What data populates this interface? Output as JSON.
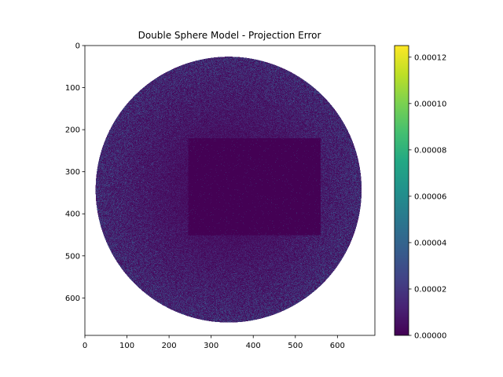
{
  "chart_data": {
    "type": "heatmap",
    "title": "Double Sphere Model - Projection Error",
    "xlabel": "",
    "ylabel": "",
    "x_ticks": [
      0,
      100,
      200,
      300,
      400,
      500,
      600
    ],
    "y_ticks": [
      0,
      100,
      200,
      300,
      400,
      500,
      600
    ],
    "xlim": [
      0,
      689
    ],
    "ylim": [
      689,
      0
    ],
    "y_axis_inverted": true,
    "image": {
      "width": 689,
      "height": 689,
      "valid_region": {
        "shape": "circle",
        "center_x": 341,
        "center_y": 342,
        "radius": 316
      },
      "outside_value": null,
      "low_error_block": {
        "x_range": [
          245,
          560
        ],
        "y_range": [
          220,
          450
        ],
        "value": 0.0
      },
      "typical_value": 4e-06,
      "speckle_max": 4e-05
    },
    "colormap": "viridis",
    "colorbar": {
      "vmin": 0.0,
      "vmax": 0.000125,
      "tick_values": [
        0.0,
        2e-05,
        4e-05,
        6e-05,
        8e-05,
        0.0001,
        0.00012
      ],
      "tick_labels": [
        "0.00000",
        "0.00002",
        "0.00004",
        "0.00006",
        "0.00008",
        "0.00010",
        "0.00012"
      ]
    },
    "grid": false
  }
}
